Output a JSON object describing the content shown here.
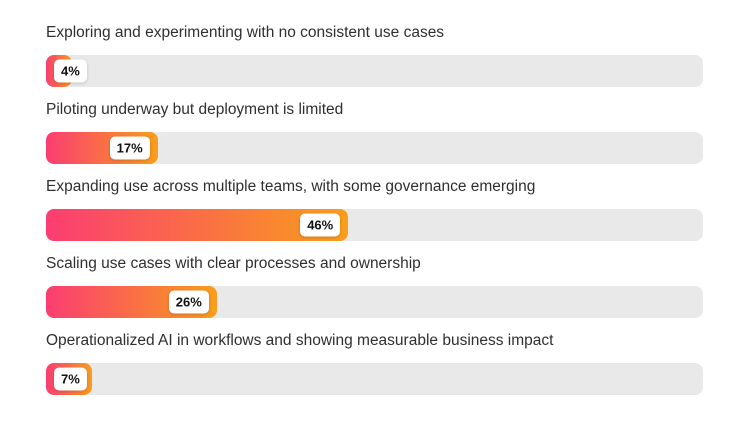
{
  "page": {
    "background": "#ffffff"
  },
  "chart_data": {
    "type": "bar",
    "orientation": "horizontal",
    "title": "",
    "xlabel": "",
    "ylabel": "",
    "xlim": [
      0,
      100
    ],
    "grid": false,
    "legend": false,
    "categories": [
      "Exploring and experimenting with no consistent use cases",
      "Piloting underway but deployment is limited",
      "Expanding use across multiple teams, with some governance emerging",
      "Scaling use cases with clear processes and ownership",
      "Operationalized AI in workflows and showing measurable business impact"
    ],
    "values": [
      4,
      17,
      46,
      26,
      7
    ],
    "value_suffix": "%",
    "badge_labels": [
      "4%",
      "17%",
      "46%",
      "26%",
      "7%"
    ],
    "colors": {
      "bar_gradient_start": "#fb3d72",
      "bar_gradient_end": "#f89e1b",
      "track": "#e9e9e9",
      "label_text": "#2f2f2f",
      "badge_bg": "#ffffff",
      "badge_text": "#111111",
      "page_bg": "#ffffff"
    }
  }
}
